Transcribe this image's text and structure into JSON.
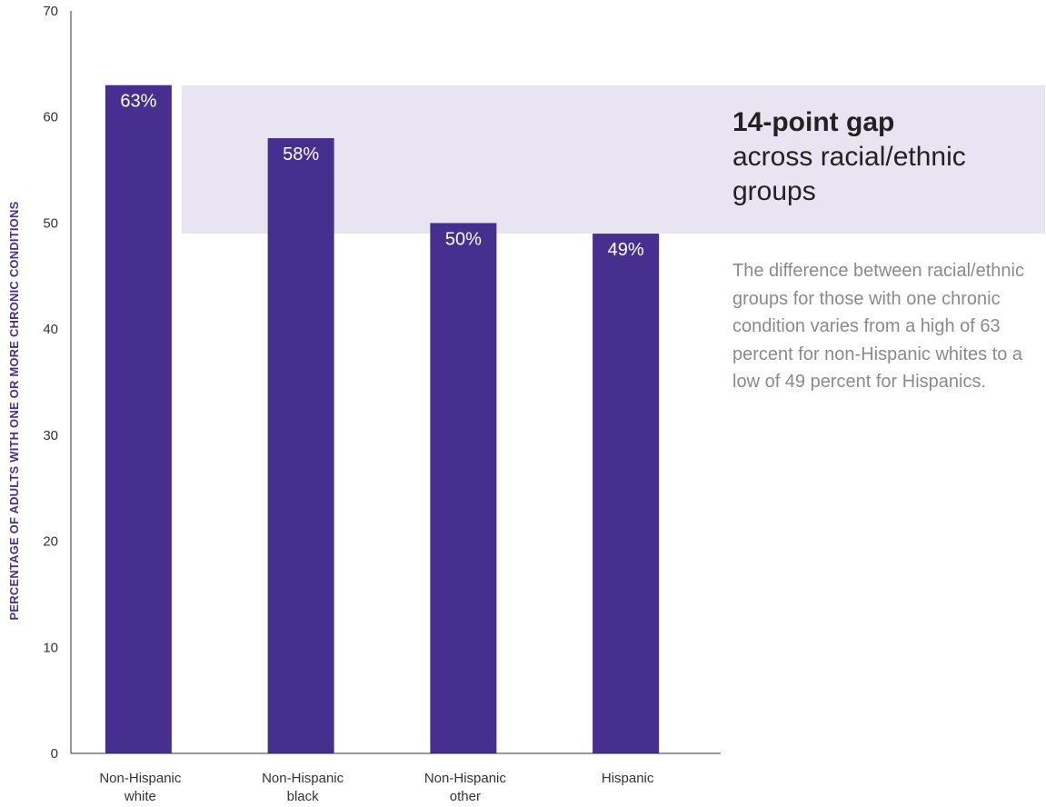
{
  "chart_data": {
    "type": "bar",
    "categories": [
      [
        "Non-Hispanic",
        "white"
      ],
      [
        "Non-Hispanic",
        "black"
      ],
      [
        "Non-Hispanic",
        "other"
      ],
      [
        "Hispanic"
      ]
    ],
    "values": [
      63,
      58,
      50,
      49
    ],
    "value_labels": [
      "63%",
      "58%",
      "50%",
      "49%"
    ],
    "ylabel": "PERCENTAGE OF ADULTS WITH ONE OR MORE CHRONIC CONDITIONS",
    "ylim": [
      0,
      70
    ],
    "yticks": [
      0,
      10,
      20,
      30,
      40,
      50,
      60,
      70
    ],
    "grid": false,
    "colors": {
      "bar": "#472f8f",
      "band": "#e8e4f2",
      "axis_title": "#4a2f8f"
    },
    "highlight_band": {
      "from": 49,
      "to": 63
    }
  },
  "callout": {
    "title_bold": "14-point gap",
    "title_lines": [
      "across racial/ethnic",
      "groups"
    ],
    "body": "The difference between racial/ethnic groups for those with one chronic condition varies from a high of 63 percent for non-Hispanic whites to a low of 49 percent for Hispanics."
  }
}
